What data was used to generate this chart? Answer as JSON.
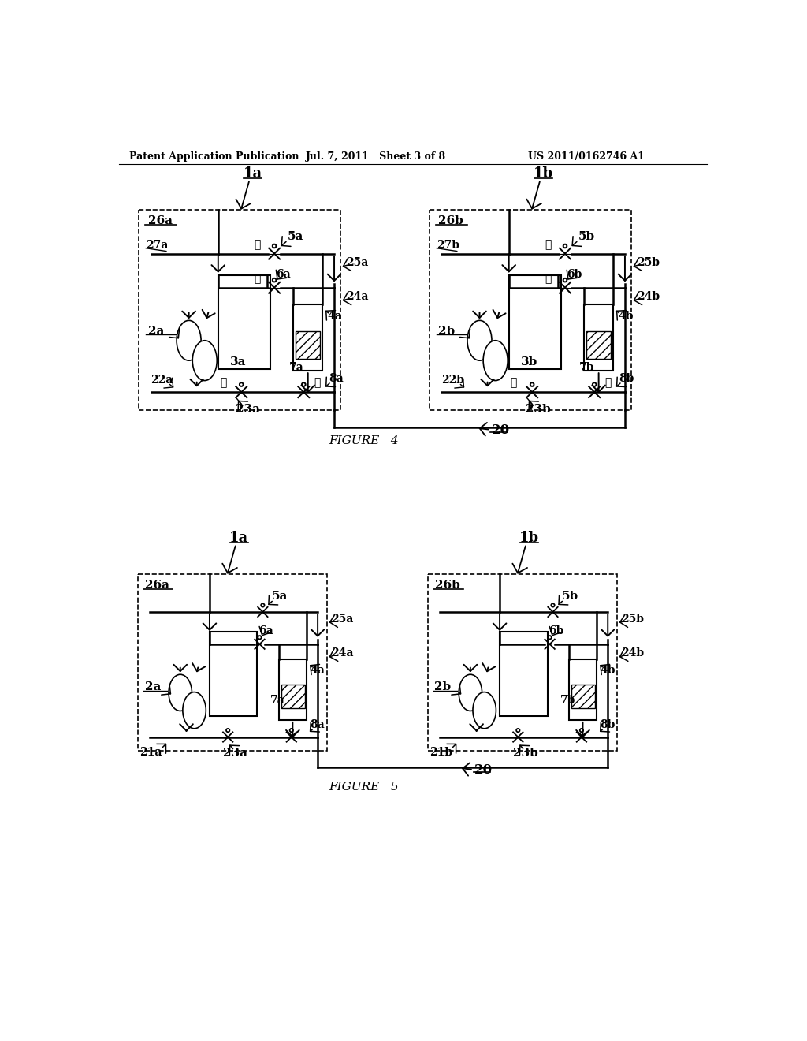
{
  "header_left": "Patent Application Publication",
  "header_mid": "Jul. 7, 2011   Sheet 3 of 8",
  "header_right": "US 2011/0162746 A1",
  "fig4_caption": "FIGURE   4",
  "fig5_caption": "FIGURE   5",
  "bg_color": "#ffffff"
}
